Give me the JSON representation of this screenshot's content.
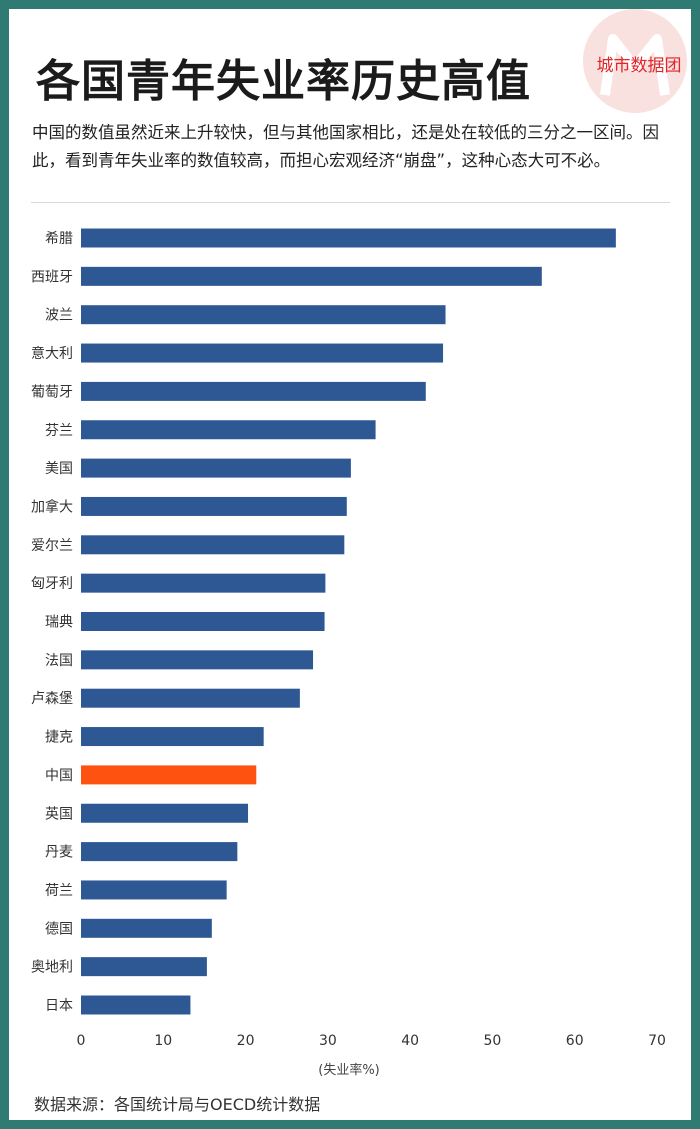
{
  "title": "各国青年失业率历史高值",
  "subtitle": "中国的数值虽然近来上升较快，但与其他国家相比，还是处在较低的三分之一区间。因此，看到青年失业率的数值较高，而担心宏观经济“崩盘”，这种心态大可不必。",
  "logo_text": "城市数据团",
  "source": "数据来源：各国统计局与OECD统计数据",
  "colors": {
    "bar": "#2e5894",
    "highlight": "#fe5310",
    "frame": "#2f7b73",
    "logo_red": "#e0262b"
  },
  "chart_data": {
    "type": "bar",
    "orientation": "horizontal",
    "title": "各国青年失业率历史高值",
    "xlabel": "(失业率%)",
    "ylabel": "",
    "xlim": [
      0,
      70
    ],
    "xticks": [
      0,
      10,
      20,
      30,
      40,
      50,
      60,
      70
    ],
    "grid": false,
    "categories": [
      "希腊",
      "西班牙",
      "波兰",
      "意大利",
      "葡萄牙",
      "芬兰",
      "美国",
      "加拿大",
      "爱尔兰",
      "匈牙利",
      "瑞典",
      "法国",
      "卢森堡",
      "捷克",
      "中国",
      "英国",
      "丹麦",
      "荷兰",
      "德国",
      "奥地利",
      "日本"
    ],
    "values": [
      65.0,
      56.0,
      44.3,
      44.0,
      41.9,
      35.8,
      32.8,
      32.3,
      32.0,
      29.7,
      29.6,
      28.2,
      26.6,
      22.2,
      21.3,
      20.3,
      19.0,
      17.7,
      15.9,
      15.3,
      13.3
    ],
    "highlight": "中国"
  }
}
